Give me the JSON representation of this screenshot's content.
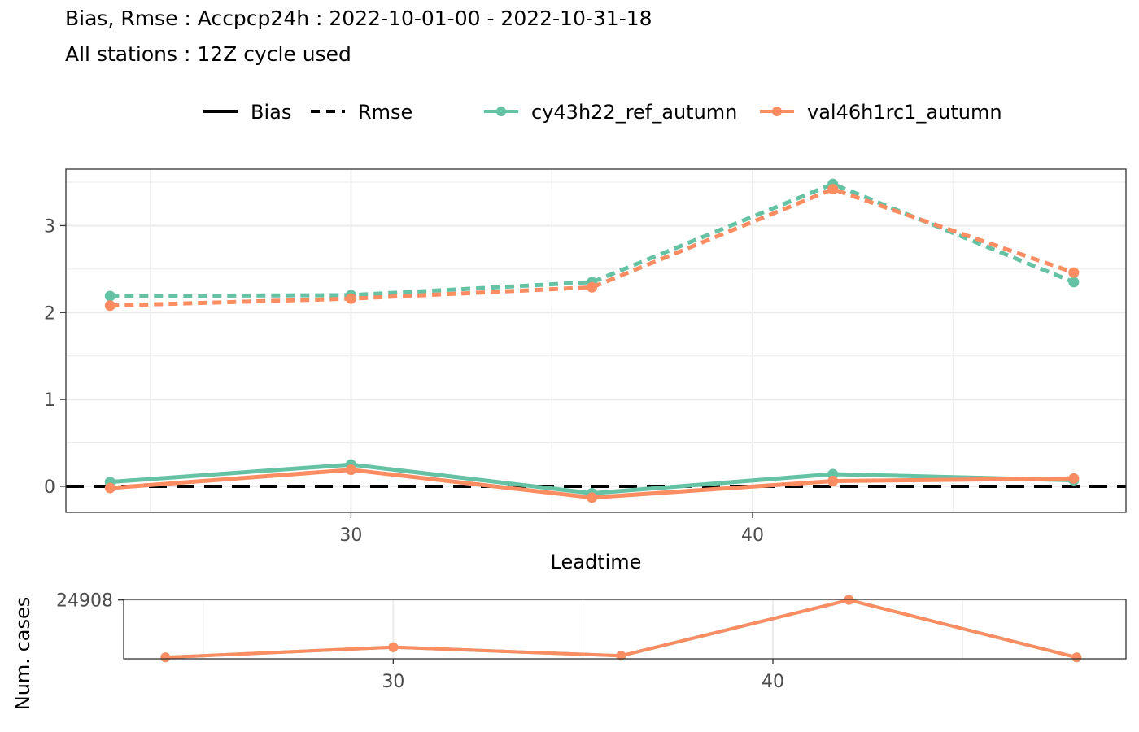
{
  "title": "Bias, Rmse : Accpcp24h : 2022-10-01-00 - 2022-10-31-18",
  "subtitle": "All stations : 12Z cycle used",
  "legend": {
    "linetypes": [
      {
        "label": "Bias",
        "dash": "solid"
      },
      {
        "label": "Rmse",
        "dash": "dashed"
      }
    ],
    "models": [
      {
        "label": "cy43h22_ref_autumn",
        "color": "#66c2a5"
      },
      {
        "label": "val46h1rc1_autumn",
        "color": "#fc8d62"
      }
    ]
  },
  "chart_data": [
    {
      "type": "line",
      "title": "Bias, Rmse : Accpcp24h : 2022-10-01-00 - 2022-10-31-18",
      "xlabel": "Leadtime",
      "ylabel": "",
      "xlim": [
        22.9,
        49.3
      ],
      "ylim": [
        -0.3,
        3.65
      ],
      "xticks": [
        30,
        40
      ],
      "yticks": [
        0,
        1,
        2,
        3
      ],
      "grid": true,
      "reference_line": {
        "y": 0,
        "style": "dashed",
        "color": "#000000"
      },
      "x": [
        24,
        30,
        36,
        42,
        48
      ],
      "series": [
        {
          "name": "cy43h22_ref_autumn",
          "metric": "Rmse",
          "dash": "dashed",
          "color": "#66c2a5",
          "values": [
            2.19,
            2.2,
            2.35,
            3.48,
            2.35
          ]
        },
        {
          "name": "val46h1rc1_autumn",
          "metric": "Rmse",
          "dash": "dashed",
          "color": "#fc8d62",
          "values": [
            2.08,
            2.16,
            2.29,
            3.42,
            2.46
          ]
        },
        {
          "name": "cy43h22_ref_autumn",
          "metric": "Bias",
          "dash": "solid",
          "color": "#66c2a5",
          "values": [
            0.05,
            0.25,
            -0.08,
            0.14,
            0.07
          ]
        },
        {
          "name": "val46h1rc1_autumn",
          "metric": "Bias",
          "dash": "solid",
          "color": "#fc8d62",
          "values": [
            -0.02,
            0.19,
            -0.13,
            0.06,
            0.09
          ]
        }
      ]
    },
    {
      "type": "line",
      "xlabel": "",
      "ylabel": "Num. cases",
      "xlim": [
        22.9,
        49.3
      ],
      "ylim": [
        24695,
        24910
      ],
      "xticks": [
        30,
        40
      ],
      "yticks": [
        24908
      ],
      "grid": true,
      "x": [
        24,
        30,
        36,
        42,
        48
      ],
      "series": [
        {
          "name": "cy43h22_ref_autumn",
          "color": "#66c2a5",
          "values": [
            24700,
            24737,
            24706,
            24908,
            24700
          ]
        },
        {
          "name": "val46h1rc1_autumn",
          "color": "#fc8d62",
          "values": [
            24700,
            24737,
            24706,
            24908,
            24700
          ]
        }
      ]
    }
  ]
}
